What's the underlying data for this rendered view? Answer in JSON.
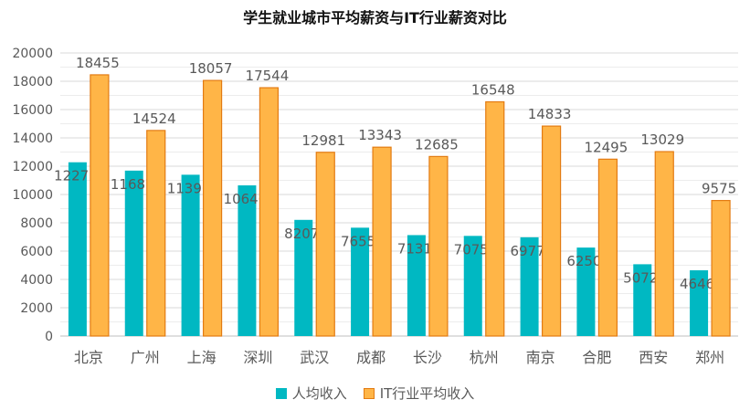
{
  "chart_data": {
    "type": "bar",
    "title": "学生就业城市平均薪资与IT行业薪资对比",
    "categories": [
      "北京",
      "广州",
      "上海",
      "深圳",
      "武汉",
      "成都",
      "长沙",
      "杭州",
      "南京",
      "合肥",
      "西安",
      "郑州"
    ],
    "series": [
      {
        "name": "人均收入",
        "color": "#00B8C2",
        "values": [
          12277,
          11687,
          11396,
          10646,
          8207,
          7655,
          7131,
          7075,
          6977,
          6250,
          5072,
          4646
        ]
      },
      {
        "name": "IT行业平均收入",
        "color": "#FFB547",
        "stroke": "#E37B12",
        "values": [
          18455,
          14524,
          18057,
          17544,
          12981,
          13343,
          12685,
          16548,
          14833,
          12495,
          13029,
          9575
        ]
      }
    ],
    "yticks": [
      0,
      2000,
      4000,
      6000,
      8000,
      10000,
      12000,
      14000,
      16000,
      18000,
      20000
    ],
    "ylim": [
      0,
      20000
    ],
    "grid": true,
    "legend": "bottom"
  }
}
